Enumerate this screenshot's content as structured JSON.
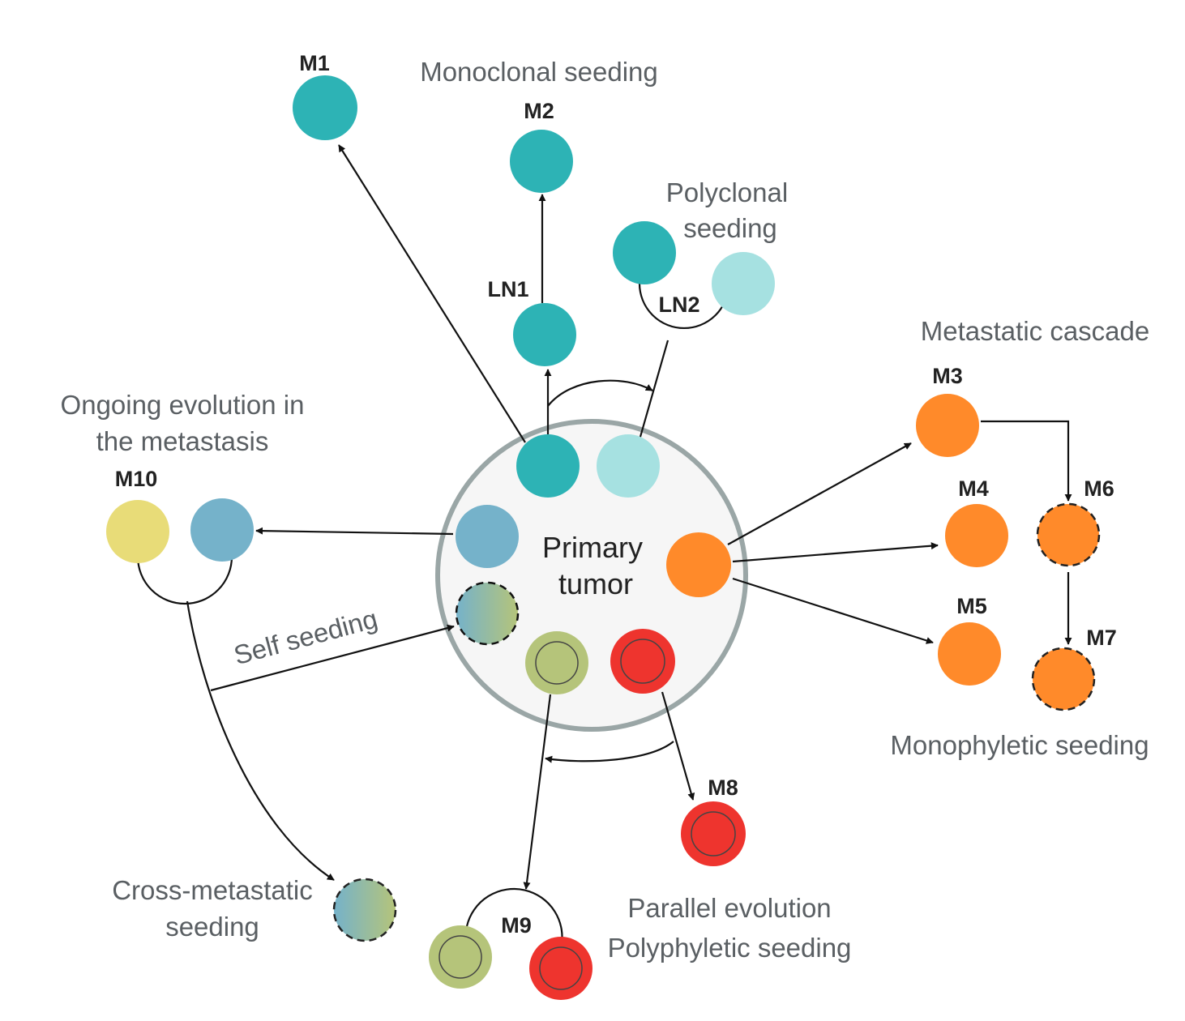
{
  "colors": {
    "teal": "#2db3b5",
    "light_teal": "#a6e1e1",
    "blue": "#75b2ca",
    "yellow": "#e8dc78",
    "orange": "#ff8a2a",
    "olive": "#b5c47a",
    "red": "#ee342e",
    "tumor_fill": "#f6f6f6",
    "tumor_stroke": "#9aa6a6"
  },
  "primary_tumor": {
    "line1": "Primary",
    "line2": "tumor"
  },
  "labels": {
    "m1": "M1",
    "m2": "M2",
    "m3": "M3",
    "m4": "M4",
    "m5": "M5",
    "m6": "M6",
    "m7": "M7",
    "m8": "M8",
    "m9": "M9",
    "m10": "M10",
    "ln1": "LN1",
    "ln2": "LN2"
  },
  "descriptions": {
    "monoclonal": "Monoclonal seeding",
    "polyclonal_1": "Polyclonal",
    "polyclonal_2": "seeding",
    "cascade": "Metastatic cascade",
    "ongoing_1": "Ongoing evolution in",
    "ongoing_2": "the metastasis",
    "self_seeding": "Self seeding",
    "monophyletic": "Monophyletic seeding",
    "cross_1": "Cross-metastatic",
    "cross_2": "seeding",
    "parallel_1": "Parallel evolution",
    "parallel_2": "Polyphyletic seeding"
  }
}
